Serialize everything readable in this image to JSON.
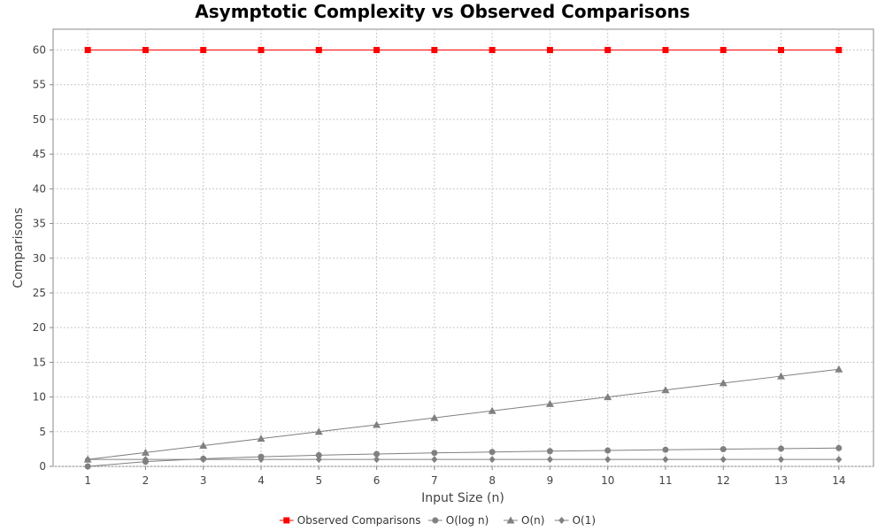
{
  "chart_data": {
    "type": "line",
    "title": "Asymptotic Complexity vs Observed Comparisons",
    "xlabel": "Input Size (n)",
    "ylabel": "Comparisons",
    "x": [
      1,
      2,
      3,
      4,
      5,
      6,
      7,
      8,
      9,
      10,
      11,
      12,
      13,
      14
    ],
    "xlim": [
      0.4,
      14.6
    ],
    "ylim": [
      0,
      63
    ],
    "yticks": [
      0,
      5,
      10,
      15,
      20,
      25,
      30,
      35,
      40,
      45,
      50,
      55,
      60
    ],
    "grid": true,
    "legend_position": "bottom",
    "series": [
      {
        "name": "Observed Comparisons",
        "color": "#ff0000",
        "marker": "square",
        "values": [
          60,
          60,
          60,
          60,
          60,
          60,
          60,
          60,
          60,
          60,
          60,
          60,
          60,
          60
        ]
      },
      {
        "name": "O(log n)",
        "color": "#808080",
        "marker": "circle",
        "values": [
          0,
          0.69,
          1.1,
          1.39,
          1.61,
          1.79,
          1.95,
          2.08,
          2.2,
          2.3,
          2.4,
          2.48,
          2.56,
          2.64
        ]
      },
      {
        "name": "O(n)",
        "color": "#808080",
        "marker": "triangle",
        "values": [
          1,
          2,
          3,
          4,
          5,
          6,
          7,
          8,
          9,
          10,
          11,
          12,
          13,
          14
        ]
      },
      {
        "name": "O(1)",
        "color": "#808080",
        "marker": "diamond",
        "values": [
          1,
          1,
          1,
          1,
          1,
          1,
          1,
          1,
          1,
          1,
          1,
          1,
          1,
          1
        ]
      }
    ]
  }
}
